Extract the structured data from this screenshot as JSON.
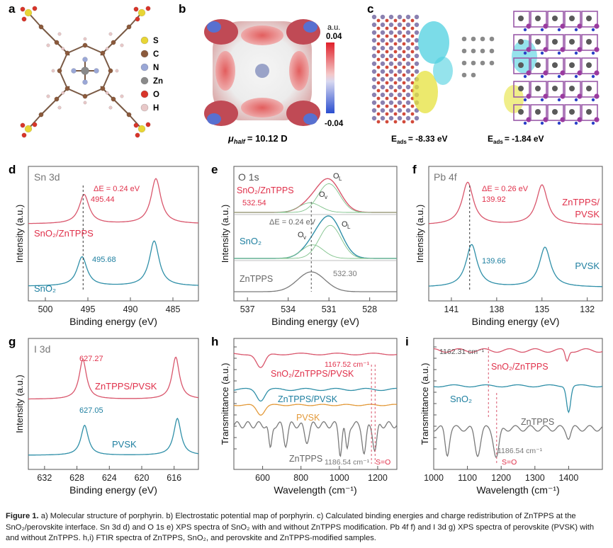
{
  "panel_letters": {
    "a": "a",
    "b": "b",
    "c": "c",
    "d": "d",
    "e": "e",
    "f": "f",
    "g": "g",
    "h": "h",
    "i": "i"
  },
  "legend_a": [
    {
      "label": "S",
      "color": "#e8d535"
    },
    {
      "label": "C",
      "color": "#8b5a3c"
    },
    {
      "label": "N",
      "color": "#9aa7d6"
    },
    {
      "label": "Zn",
      "color": "#8a8a8a"
    },
    {
      "label": "O",
      "color": "#d8352a"
    },
    {
      "label": "H",
      "color": "#e8c8c8"
    }
  ],
  "panel_b": {
    "colorbar_title": "a.u.",
    "colorbar_max": "0.04",
    "colorbar_min": "-0.04",
    "mu_symbol": "μ",
    "mu_sub": "half",
    "mu_value": "= 10.12 D"
  },
  "panel_c": {
    "e1_prefix": "E",
    "e1_sub": "ads",
    "e1_value": "= -8.33 eV",
    "e2_prefix": "E",
    "e2_sub": "ads",
    "e2_value": "= -1.84 eV"
  },
  "colors": {
    "red": "#d9566c",
    "teal": "#2f8fa8",
    "gray": "#7a7a7a",
    "orange": "#e39a3a",
    "green": "#7fc28a",
    "label_red": "#e0304a",
    "label_teal": "#1e7fa0"
  },
  "chart_data": [
    {
      "id": "d",
      "type": "line",
      "title": "Sn 3d",
      "xlabel": "Binding energy (eV)",
      "ylabel": "Intensity (a.u.)",
      "xlim": [
        502,
        482
      ],
      "xticks": [
        "500",
        "495",
        "490",
        "485"
      ],
      "annotation": "ΔE = 0.24 eV",
      "series": [
        {
          "name": "SnO2/ZnTPPS",
          "peak_labels": [
            "495.44"
          ],
          "peaks": [
            495.44,
            487.0
          ]
        },
        {
          "name": "SnO2",
          "peak_labels": [
            "495.68"
          ],
          "peaks": [
            495.68,
            487.2
          ]
        }
      ]
    },
    {
      "id": "e",
      "type": "line",
      "title": "O 1s",
      "xlabel": "Binding energy (eV)",
      "ylabel": "Intensity (a.u.)",
      "xlim": [
        538,
        526
      ],
      "xticks": [
        "537",
        "534",
        "531",
        "528"
      ],
      "annotation": "ΔE = 0.24 eV",
      "series": [
        {
          "name": "SnO2/ZnTPPS",
          "peak_labels": [
            "532.54"
          ],
          "components": [
            "OL",
            "OV"
          ]
        },
        {
          "name": "SnO2",
          "components": [
            "OV",
            "OL"
          ]
        },
        {
          "name": "ZnTPPS",
          "peak_labels": [
            "532.30"
          ]
        }
      ]
    },
    {
      "id": "f",
      "type": "line",
      "title": "Pb 4f",
      "xlabel": "Binding energy (eV)",
      "ylabel": "Intensity (a.u.)",
      "xlim": [
        142.5,
        131
      ],
      "xticks": [
        "141",
        "138",
        "135",
        "132"
      ],
      "annotation": "ΔE = 0.26 eV",
      "series": [
        {
          "name": "ZnTPPS/ PVSK",
          "peak_labels": [
            "139.92"
          ],
          "peaks": [
            139.92,
            135.0
          ]
        },
        {
          "name": "PVSK",
          "peak_labels": [
            "139.66"
          ],
          "peaks": [
            139.66,
            134.8
          ]
        }
      ]
    },
    {
      "id": "g",
      "type": "line",
      "title": "I 3d",
      "xlabel": "Binding energy (eV)",
      "ylabel": "Intensity (a.u.)",
      "xlim": [
        634,
        613
      ],
      "xticks": [
        "632",
        "628",
        "624",
        "620",
        "616"
      ],
      "series": [
        {
          "name": "ZnTPPS/PVSK",
          "peak_labels": [
            "627.27"
          ],
          "peaks": [
            627.27,
            615.8
          ]
        },
        {
          "name": "PVSK",
          "peak_labels": [
            "627.05"
          ],
          "peaks": [
            627.05,
            615.6
          ]
        }
      ]
    },
    {
      "id": "h",
      "type": "line",
      "xlabel": "Wavelength (cm⁻¹)",
      "ylabel": "Transmittance (a.u.)",
      "xlim": [
        450,
        1300
      ],
      "xticks": [
        "600",
        "800",
        "1000",
        "1200"
      ],
      "annotations": [
        "1167.52 cm⁻¹",
        "1186.54 cm⁻¹",
        "S=O"
      ],
      "series": [
        {
          "name": "SnO2/ZnTPPS/PVSK"
        },
        {
          "name": "ZnTPPS/PVSK"
        },
        {
          "name": "PVSK"
        },
        {
          "name": "ZnTPPS"
        }
      ]
    },
    {
      "id": "i",
      "type": "line",
      "xlabel": "Wavelength (cm⁻¹)",
      "ylabel": "Transmittance (a.u.)",
      "xlim": [
        1000,
        1500
      ],
      "xticks": [
        "1000",
        "1100",
        "1200",
        "1300",
        "1400"
      ],
      "annotations": [
        "1162.31 cm⁻¹",
        "1186.54 cm⁻¹",
        "S=O"
      ],
      "series": [
        {
          "name": "SnO2/ZnTPPS"
        },
        {
          "name": "SnO2"
        },
        {
          "name": "ZnTPPS"
        }
      ]
    }
  ],
  "caption": {
    "label": "Figure 1.",
    "text": " a) Molecular structure of porphyrin. b) Electrostatic potential map of porphyrin. c) Calculated binding energies and charge redistribution of ZnTPPS at the SnO₂/perovskite interface. Sn 3d d) and O 1s e) XPS spectra of SnO₂ with and without ZnTPPS modification. Pb 4f f) and I 3d g) XPS spectra of perovskite (PVSK) with and without ZnTPPS. h,i) FTIR spectra of ZnTPPS, SnO₂, and perovskite and ZnTPPS-modified samples."
  }
}
